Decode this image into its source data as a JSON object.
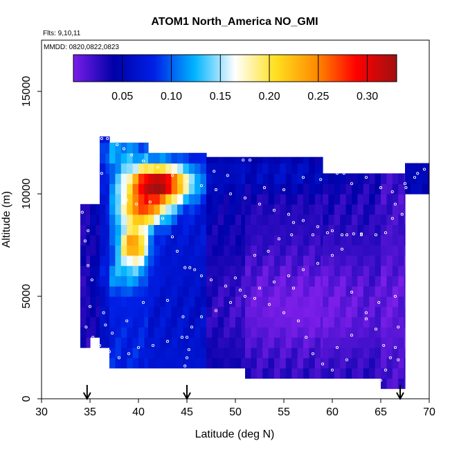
{
  "chart_data": {
    "type": "heatmap",
    "title": "ATOM1 North_America NO_GMI",
    "subtitle_flights": "Flts: 9,10,11",
    "subtitle_dates": "MMDD: 0820,0822,0823",
    "xlabel": "Latitude (deg N)",
    "ylabel": "Altitude (m)",
    "xlim": [
      30,
      70
    ],
    "ylim": [
      0,
      17500
    ],
    "xticks": [
      "30",
      "35",
      "40",
      "45",
      "50",
      "55",
      "60",
      "65",
      "70"
    ],
    "yticks": [
      "0",
      "5000",
      "10000",
      "15000"
    ],
    "colorbar": {
      "range": [
        0,
        0.33
      ],
      "ticks": [
        "0.05",
        "0.10",
        "0.15",
        "0.20",
        "0.25",
        "0.30"
      ],
      "tick_values": [
        0.05,
        0.1,
        0.15,
        0.2,
        0.25,
        0.3
      ],
      "colors": [
        "#7a1ee8",
        "#0000a8",
        "#0020e6",
        "#00b4ff",
        "#ffffff",
        "#ffe020",
        "#ff8c00",
        "#ff0000",
        "#a01010"
      ]
    },
    "arrows_latitude": [
      34.7,
      45.0,
      67.0
    ],
    "cell": {
      "dx": 0.6,
      "dz": 500
    },
    "columns": [
      {
        "x0": 34.0,
        "x1": 35.0,
        "z0": 2500,
        "z1": 9500,
        "v": 0.03
      },
      {
        "x0": 35.0,
        "x1": 36.0,
        "z0": 3000,
        "z1": 9500,
        "v": 0.04
      },
      {
        "x0": 36.0,
        "x1": 37.0,
        "z0": 2500,
        "z1": 12800,
        "v": 0.06
      },
      {
        "x0": 37.0,
        "x1": 41.0,
        "z0": 1500,
        "z1": 12500,
        "v": 0.08
      },
      {
        "x0": 41.0,
        "x1": 47.0,
        "z0": 1500,
        "z1": 12000,
        "v": 0.07
      },
      {
        "x0": 47.0,
        "x1": 51.0,
        "z0": 1500,
        "z1": 11800,
        "v": 0.04
      },
      {
        "x0": 51.0,
        "x1": 59.0,
        "z0": 1000,
        "z1": 11800,
        "v": 0.03
      },
      {
        "x0": 59.0,
        "x1": 65.0,
        "z0": 1000,
        "z1": 11000,
        "v": 0.03
      },
      {
        "x0": 65.0,
        "x1": 67.5,
        "z0": 500,
        "z1": 11000,
        "v": 0.02
      },
      {
        "x0": 67.5,
        "x1": 70.0,
        "z0": 10000,
        "z1": 11500,
        "v": 0.05
      }
    ],
    "blobs": [
      {
        "lat": 42.0,
        "alt": 10500,
        "slat": 3.2,
        "salt": 900,
        "v": 0.26
      },
      {
        "lat": 40.5,
        "alt": 9200,
        "slat": 2.5,
        "salt": 800,
        "v": 0.16
      },
      {
        "lat": 39.5,
        "alt": 7500,
        "slat": 1.5,
        "salt": 900,
        "v": 0.17
      },
      {
        "lat": 37.5,
        "alt": 12000,
        "slat": 3.0,
        "salt": 700,
        "v": 0.04
      },
      {
        "lat": 38.5,
        "alt": 6000,
        "slat": 2.5,
        "salt": 800,
        "v": 0.04
      },
      {
        "lat": 55.0,
        "alt": 11000,
        "slat": 7.0,
        "salt": 900,
        "v": 0.03
      },
      {
        "lat": 57.0,
        "alt": 4500,
        "slat": 10.0,
        "salt": 2500,
        "v": -0.03
      }
    ],
    "flight_track": [
      [
        36.2,
        12700
      ],
      [
        36.8,
        12700
      ],
      [
        37.3,
        12600
      ],
      [
        37.8,
        12400
      ],
      [
        38.5,
        12200
      ],
      [
        39.3,
        11900
      ],
      [
        40.5,
        11600
      ],
      [
        42.0,
        11300
      ],
      [
        43.5,
        10900
      ],
      [
        45.0,
        10600
      ],
      [
        46.5,
        10400
      ],
      [
        48.0,
        10200
      ],
      [
        49.5,
        10000
      ],
      [
        51.0,
        9800
      ],
      [
        52.5,
        9500
      ],
      [
        54.0,
        9200
      ],
      [
        55.5,
        9000
      ],
      [
        57.0,
        8700
      ],
      [
        58.5,
        8400
      ],
      [
        60.0,
        8200
      ],
      [
        61.5,
        8000
      ],
      [
        63.0,
        8000
      ],
      [
        64.5,
        8000
      ],
      [
        65.5,
        8100
      ],
      [
        66.5,
        9500
      ],
      [
        67.5,
        10500
      ],
      [
        68.5,
        10800
      ],
      [
        69.5,
        11200
      ],
      [
        34.8,
        6500
      ],
      [
        35.2,
        5800
      ],
      [
        35.0,
        4500
      ],
      [
        34.6,
        3500
      ],
      [
        35.3,
        3000
      ],
      [
        36.0,
        2600
      ],
      [
        37.0,
        2300
      ],
      [
        38.0,
        2000
      ],
      [
        39.0,
        2200
      ],
      [
        40.0,
        2500
      ],
      [
        41.5,
        2600
      ],
      [
        43.0,
        2800
      ],
      [
        44.5,
        3000
      ],
      [
        45.5,
        3500
      ],
      [
        46.5,
        4000
      ],
      [
        48.0,
        4300
      ],
      [
        49.5,
        4700
      ],
      [
        51.0,
        5000
      ],
      [
        52.5,
        5400
      ],
      [
        54.0,
        5700
      ],
      [
        55.5,
        6000
      ],
      [
        57.0,
        6300
      ],
      [
        58.5,
        6600
      ],
      [
        60.0,
        7000
      ],
      [
        61.0,
        7300
      ],
      [
        62.0,
        5200
      ],
      [
        63.5,
        4200
      ],
      [
        64.5,
        3400
      ],
      [
        65.3,
        2600
      ],
      [
        66.0,
        2000
      ],
      [
        65.5,
        1400
      ],
      [
        65.0,
        900
      ],
      [
        64.8,
        600
      ],
      [
        44.8,
        6400
      ],
      [
        45.3,
        6400
      ],
      [
        45.8,
        6300
      ],
      [
        46.5,
        6000
      ],
      [
        47.5,
        5800
      ],
      [
        49.0,
        5500
      ],
      [
        50.5,
        5300
      ],
      [
        52.0,
        4900
      ],
      [
        53.5,
        4600
      ],
      [
        55.0,
        4200
      ],
      [
        56.5,
        3800
      ],
      [
        58.0,
        2200
      ],
      [
        59.0,
        1700
      ],
      [
        60.5,
        2500
      ],
      [
        62.0,
        3100
      ],
      [
        63.5,
        3900
      ],
      [
        64.8,
        4700
      ],
      [
        66.5,
        5000
      ],
      [
        66.8,
        3500
      ],
      [
        66.5,
        2500
      ],
      [
        66.8,
        1900
      ],
      [
        44.8,
        1600
      ],
      [
        45.0,
        2000
      ],
      [
        45.2,
        2400
      ],
      [
        45.0,
        3000
      ],
      [
        44.6,
        4000
      ],
      [
        38.8,
        9700
      ],
      [
        39.8,
        9500
      ],
      [
        41.2,
        9600
      ],
      [
        42.5,
        8800
      ],
      [
        43.5,
        7900
      ],
      [
        44.0,
        7200
      ],
      [
        34.5,
        7700
      ],
      [
        34.8,
        8200
      ],
      [
        34.2,
        9100
      ],
      [
        35.4,
        9800
      ],
      [
        36.2,
        11000
      ],
      [
        35.8,
        10400
      ],
      [
        47.8,
        11100
      ],
      [
        49.2,
        10900
      ],
      [
        50.8,
        11650
      ],
      [
        51.5,
        11650
      ],
      [
        53.0,
        10300
      ],
      [
        55.0,
        10200
      ],
      [
        57.0,
        10800
      ],
      [
        58.8,
        10700
      ],
      [
        60.5,
        11000
      ],
      [
        61.2,
        11000
      ],
      [
        62.0,
        10500
      ],
      [
        63.5,
        10800
      ],
      [
        65.0,
        10300
      ],
      [
        66.2,
        10100
      ],
      [
        67.6,
        10300
      ],
      [
        68.8,
        11000
      ],
      [
        52.0,
        7000
      ],
      [
        54.5,
        7800
      ],
      [
        56.0,
        8600
      ],
      [
        58.0,
        8000
      ],
      [
        59.5,
        8100
      ],
      [
        61.0,
        8000
      ],
      [
        62.2,
        8050
      ],
      [
        63.0,
        8050
      ],
      [
        66.2,
        8800
      ],
      [
        67.2,
        9000
      ],
      [
        36.6,
        3600
      ],
      [
        37.3,
        3200
      ],
      [
        36.4,
        4200
      ],
      [
        38.8,
        3800
      ],
      [
        40.5,
        4700
      ],
      [
        43.0,
        4800
      ],
      [
        56.0,
        5400
      ],
      [
        57.3,
        3000
      ],
      [
        60.0,
        1400
      ],
      [
        61.5,
        1900
      ],
      [
        50.0,
        5900
      ],
      [
        53.4,
        7200
      ],
      [
        55.8,
        8000
      ]
    ]
  }
}
